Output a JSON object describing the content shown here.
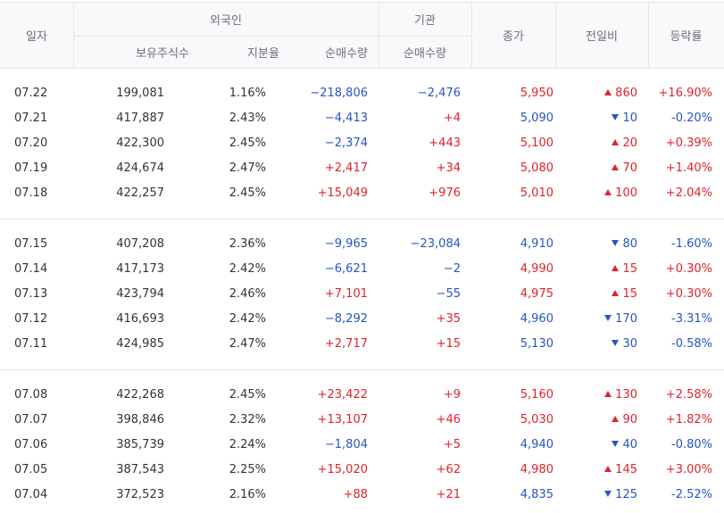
{
  "header": {
    "date": "일자",
    "foreign_group": "외국인",
    "inst_group": "기관",
    "holdings": "보유주식수",
    "ratio": "지분율",
    "foreign_net": "순매수량",
    "inst_net": "순매수량",
    "close": "종가",
    "change": "전일비",
    "rate": "등락률"
  },
  "colors": {
    "up": "#e0222c",
    "down": "#2654c4"
  },
  "groups": [
    [
      {
        "date": "07.22",
        "holdings": "199,081",
        "ratio": "1.16%",
        "foreign_net": "−218,806",
        "foreign_dir": "down",
        "inst_net": "−2,476",
        "inst_dir": "down",
        "close": "5,950",
        "close_dir": "up",
        "change": "860",
        "change_dir": "up",
        "rate": "+16.90%",
        "rate_dir": "up"
      },
      {
        "date": "07.21",
        "holdings": "417,887",
        "ratio": "2.43%",
        "foreign_net": "−4,413",
        "foreign_dir": "down",
        "inst_net": "+4",
        "inst_dir": "up",
        "close": "5,090",
        "close_dir": "down",
        "change": "10",
        "change_dir": "down",
        "rate": "-0.20%",
        "rate_dir": "down"
      },
      {
        "date": "07.20",
        "holdings": "422,300",
        "ratio": "2.45%",
        "foreign_net": "−2,374",
        "foreign_dir": "down",
        "inst_net": "+443",
        "inst_dir": "up",
        "close": "5,100",
        "close_dir": "up",
        "change": "20",
        "change_dir": "up",
        "rate": "+0.39%",
        "rate_dir": "up"
      },
      {
        "date": "07.19",
        "holdings": "424,674",
        "ratio": "2.47%",
        "foreign_net": "+2,417",
        "foreign_dir": "up",
        "inst_net": "+34",
        "inst_dir": "up",
        "close": "5,080",
        "close_dir": "up",
        "change": "70",
        "change_dir": "up",
        "rate": "+1.40%",
        "rate_dir": "up"
      },
      {
        "date": "07.18",
        "holdings": "422,257",
        "ratio": "2.45%",
        "foreign_net": "+15,049",
        "foreign_dir": "up",
        "inst_net": "+976",
        "inst_dir": "up",
        "close": "5,010",
        "close_dir": "up",
        "change": "100",
        "change_dir": "up",
        "rate": "+2.04%",
        "rate_dir": "up"
      }
    ],
    [
      {
        "date": "07.15",
        "holdings": "407,208",
        "ratio": "2.36%",
        "foreign_net": "−9,965",
        "foreign_dir": "down",
        "inst_net": "−23,084",
        "inst_dir": "down",
        "close": "4,910",
        "close_dir": "down",
        "change": "80",
        "change_dir": "down",
        "rate": "-1.60%",
        "rate_dir": "down"
      },
      {
        "date": "07.14",
        "holdings": "417,173",
        "ratio": "2.42%",
        "foreign_net": "−6,621",
        "foreign_dir": "down",
        "inst_net": "−2",
        "inst_dir": "down",
        "close": "4,990",
        "close_dir": "up",
        "change": "15",
        "change_dir": "up",
        "rate": "+0.30%",
        "rate_dir": "up"
      },
      {
        "date": "07.13",
        "holdings": "423,794",
        "ratio": "2.46%",
        "foreign_net": "+7,101",
        "foreign_dir": "up",
        "inst_net": "−55",
        "inst_dir": "down",
        "close": "4,975",
        "close_dir": "up",
        "change": "15",
        "change_dir": "up",
        "rate": "+0.30%",
        "rate_dir": "up"
      },
      {
        "date": "07.12",
        "holdings": "416,693",
        "ratio": "2.42%",
        "foreign_net": "−8,292",
        "foreign_dir": "down",
        "inst_net": "+35",
        "inst_dir": "up",
        "close": "4,960",
        "close_dir": "down",
        "change": "170",
        "change_dir": "down",
        "rate": "-3.31%",
        "rate_dir": "down"
      },
      {
        "date": "07.11",
        "holdings": "424,985",
        "ratio": "2.47%",
        "foreign_net": "+2,717",
        "foreign_dir": "up",
        "inst_net": "+15",
        "inst_dir": "up",
        "close": "5,130",
        "close_dir": "down",
        "change": "30",
        "change_dir": "down",
        "rate": "-0.58%",
        "rate_dir": "down"
      }
    ],
    [
      {
        "date": "07.08",
        "holdings": "422,268",
        "ratio": "2.45%",
        "foreign_net": "+23,422",
        "foreign_dir": "up",
        "inst_net": "+9",
        "inst_dir": "up",
        "close": "5,160",
        "close_dir": "up",
        "change": "130",
        "change_dir": "up",
        "rate": "+2.58%",
        "rate_dir": "up"
      },
      {
        "date": "07.07",
        "holdings": "398,846",
        "ratio": "2.32%",
        "foreign_net": "+13,107",
        "foreign_dir": "up",
        "inst_net": "+46",
        "inst_dir": "up",
        "close": "5,030",
        "close_dir": "up",
        "change": "90",
        "change_dir": "up",
        "rate": "+1.82%",
        "rate_dir": "up"
      },
      {
        "date": "07.06",
        "holdings": "385,739",
        "ratio": "2.24%",
        "foreign_net": "−1,804",
        "foreign_dir": "down",
        "inst_net": "+5",
        "inst_dir": "up",
        "close": "4,940",
        "close_dir": "down",
        "change": "40",
        "change_dir": "down",
        "rate": "-0.80%",
        "rate_dir": "down"
      },
      {
        "date": "07.05",
        "holdings": "387,543",
        "ratio": "2.25%",
        "foreign_net": "+15,020",
        "foreign_dir": "up",
        "inst_net": "+62",
        "inst_dir": "up",
        "close": "4,980",
        "close_dir": "up",
        "change": "145",
        "change_dir": "up",
        "rate": "+3.00%",
        "rate_dir": "up"
      },
      {
        "date": "07.04",
        "holdings": "372,523",
        "ratio": "2.16%",
        "foreign_net": "+88",
        "foreign_dir": "up",
        "inst_net": "+21",
        "inst_dir": "up",
        "close": "4,835",
        "close_dir": "down",
        "change": "125",
        "change_dir": "down",
        "rate": "-2.52%",
        "rate_dir": "down"
      }
    ]
  ]
}
